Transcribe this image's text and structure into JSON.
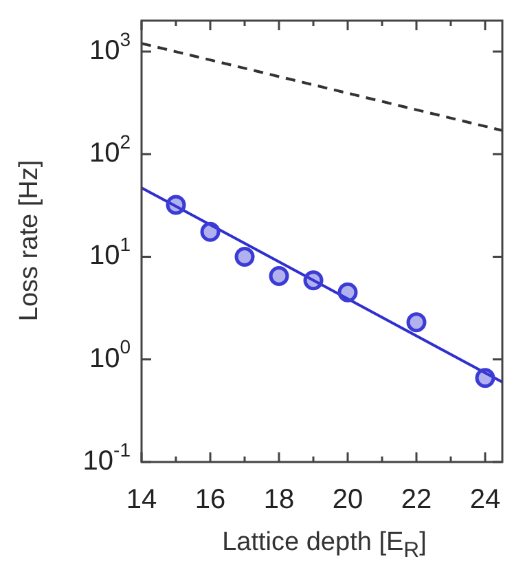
{
  "chart_data": {
    "type": "scatter",
    "xlabel": "Lattice depth [E$_{R}$]",
    "ylabel": "Loss rate [Hz]",
    "log": "y",
    "grid": false,
    "legend": false,
    "marker": "circle",
    "xlim": [
      14,
      24.5
    ],
    "xticks": [
      14,
      {
        "value": 15,
        "label": null
      },
      16,
      {
        "value": 17,
        "label": null
      },
      18,
      {
        "value": 19,
        "label": null
      },
      20,
      {
        "value": 21,
        "label": null
      },
      22,
      {
        "value": 23,
        "label": null
      },
      24
    ],
    "ylim": [
      0.1,
      2000
    ],
    "yticks": [
      {
        "value": 0.1,
        "label": "10$^{-1}$"
      },
      {
        "value": 1,
        "label": "10$^{0}$"
      },
      {
        "value": 10,
        "label": "10$^{1}$"
      },
      {
        "value": 100,
        "label": "10$^{2}$"
      },
      {
        "value": 1000,
        "label": "10$^{3}$"
      }
    ],
    "series": [
      {
        "color": "#3b3bd6",
        "x": [
          15,
          16,
          17,
          18,
          19,
          20,
          22,
          24
        ],
        "values": [
          32,
          17.5,
          10,
          6.5,
          5.9,
          4.5,
          2.3,
          0.66
        ]
      },
      {
        "type": "line",
        "color": "#2f2fd0",
        "line_style": "solid",
        "marker": "none",
        "x": [
          14,
          24.5
        ],
        "values": [
          47,
          0.6
        ]
      },
      {
        "type": "line",
        "color": "#333333",
        "line_style": "dashed",
        "marker": "none",
        "x": [
          14,
          24.5
        ],
        "values": [
          1200,
          170
        ]
      }
    ]
  }
}
